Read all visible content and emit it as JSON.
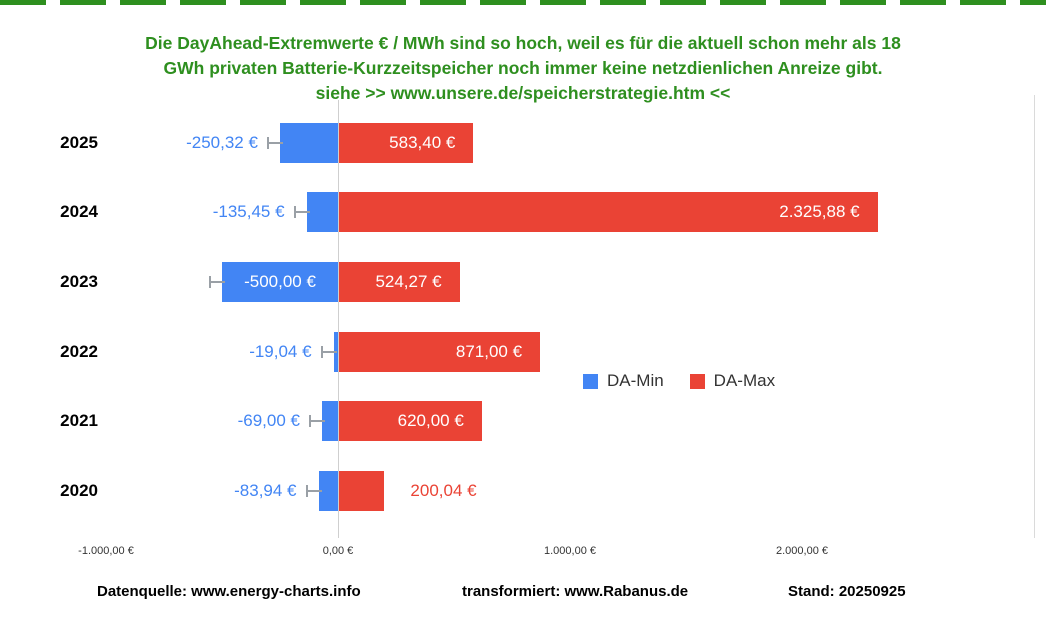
{
  "title": {
    "line1": "Die DayAhead-Extremwerte € / MWh sind so hoch, weil es für die aktuell schon mehr als 18",
    "line2": "GWh privaten Batterie-Kurzzeitspeicher noch immer keine netzdienlichen Anreize gibt.",
    "line3": "siehe >> www.unsere.de/speicherstrategie.htm <<",
    "color": "#2e8f1f"
  },
  "chart_data": {
    "type": "bar",
    "orientation": "horizontal",
    "title": "DayAhead-Extremwerte € / MWh",
    "categories": [
      "2025",
      "2024",
      "2023",
      "2022",
      "2021",
      "2020"
    ],
    "series": [
      {
        "name": "DA-Min",
        "color": "#4285f4",
        "values": [
          -250.32,
          -135.45,
          -500.0,
          -19.04,
          -69.0,
          -83.94
        ],
        "labels": [
          "-250,32 €",
          "-135,45 €",
          "-500,00 €",
          "-19,04 €",
          "-69,00 €",
          "-83,94 €"
        ]
      },
      {
        "name": "DA-Max",
        "color": "#ea4335",
        "values": [
          583.4,
          2325.88,
          524.27,
          871.0,
          620.0,
          200.04
        ],
        "labels": [
          "583,40 €",
          "2.325,88 €",
          "524,27 €",
          "871,00 €",
          "620,00 €",
          "200,04 €"
        ]
      }
    ],
    "x_axis": {
      "range": [
        -1000,
        3000
      ],
      "ticks": [
        -1000,
        0,
        1000,
        2000
      ],
      "tick_labels": [
        "-1.000,00 €",
        "0,00 €",
        "1.000,00 €",
        "2.000,00 €"
      ]
    },
    "legend": [
      "DA-Min",
      "DA-Max"
    ],
    "legend_position": "middle-right",
    "grid": "zero-line-only",
    "has_error_bars": true
  },
  "footer": {
    "source": "Datenquelle: www.energy-charts.info",
    "transform": "transformiert: www.Rabanus.de",
    "stand": "Stand: 20250925"
  }
}
